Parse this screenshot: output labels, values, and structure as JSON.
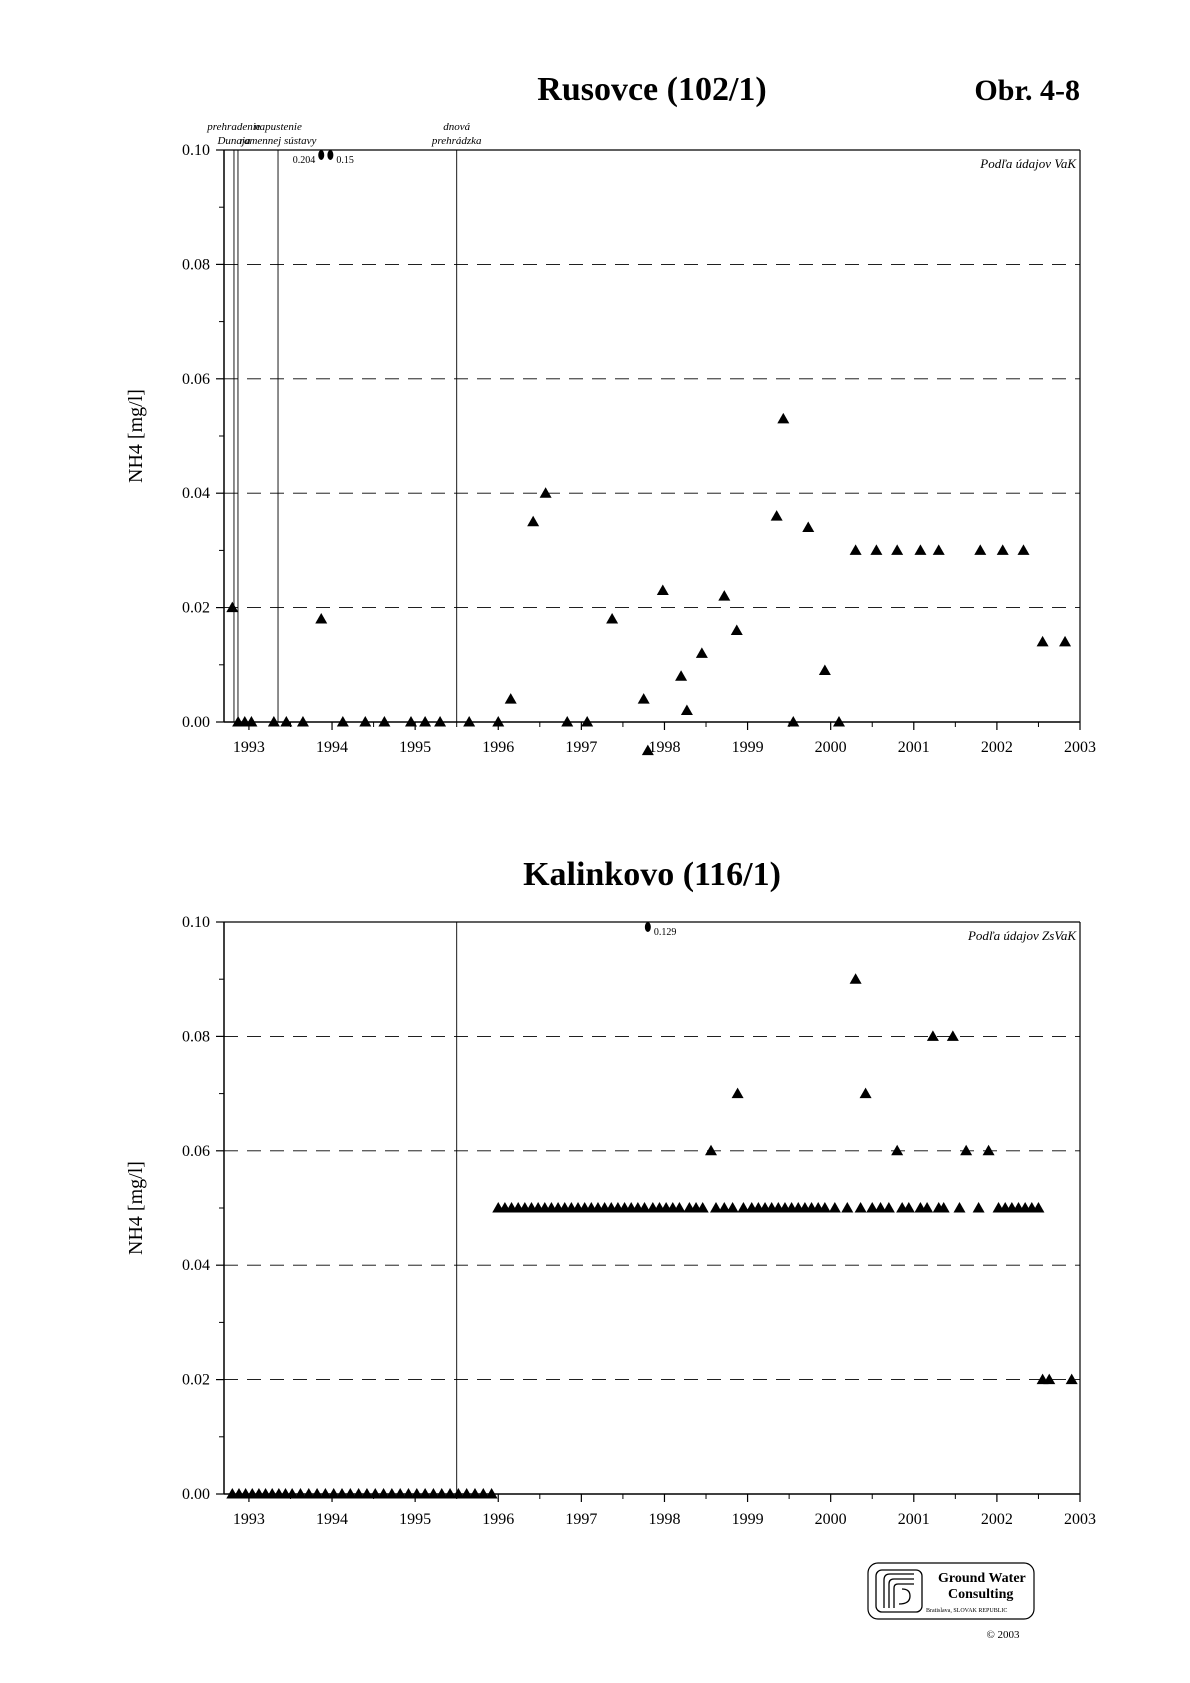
{
  "figure_label": "Obr. 4-8",
  "logo": {
    "line1": "Ground Water",
    "line2": "Consulting",
    "line3": "Bratislava, SLOVAK REPUBLIC",
    "copyright": "© 2003"
  },
  "chart_data": [
    {
      "type": "scatter",
      "title": "Rusovce (102/1)",
      "ylabel": "NH4 [mg/l]",
      "xlabel": "",
      "source_note": "Podľa údajov VaK",
      "xlim": [
        1992.7,
        2003.0
      ],
      "ylim": [
        0,
        0.1
      ],
      "xticks": [
        "1993",
        "1994",
        "1995",
        "1996",
        "1997",
        "1998",
        "1999",
        "2000",
        "2001",
        "2002",
        "2003"
      ],
      "yticks": [
        "0.00",
        "0.02",
        "0.04",
        "0.06",
        "0.08",
        "0.10"
      ],
      "grid": "dashed horizontal",
      "events": [
        {
          "x": 1992.82,
          "line1": "prehradenie",
          "line2": "Dunaja"
        },
        {
          "x": 1993.35,
          "line1": "napustenie",
          "line2": "ramennej sústavy"
        },
        {
          "x": 1995.5,
          "line1": "dnová",
          "line2": "prehrádzka"
        }
      ],
      "offscale": [
        {
          "x": 1993.87,
          "value": 0.204,
          "label": "0.204"
        },
        {
          "x": 1993.98,
          "value": 0.15,
          "label": "0.15"
        }
      ],
      "points": [
        [
          1992.8,
          0.02
        ],
        [
          1992.87,
          0.0
        ],
        [
          1992.95,
          0.0
        ],
        [
          1993.03,
          0.0
        ],
        [
          1993.3,
          0.0
        ],
        [
          1993.45,
          0.0
        ],
        [
          1993.65,
          0.0
        ],
        [
          1993.87,
          0.018
        ],
        [
          1994.13,
          0.0
        ],
        [
          1994.4,
          0.0
        ],
        [
          1994.63,
          0.0
        ],
        [
          1994.95,
          0.0
        ],
        [
          1995.12,
          0.0
        ],
        [
          1995.3,
          0.0
        ],
        [
          1995.65,
          0.0
        ],
        [
          1996.0,
          0.0
        ],
        [
          1996.15,
          0.004
        ],
        [
          1996.42,
          0.035
        ],
        [
          1996.57,
          0.04
        ],
        [
          1996.83,
          0.0
        ],
        [
          1997.07,
          0.0
        ],
        [
          1997.37,
          0.018
        ],
        [
          1997.75,
          0.004
        ],
        [
          1997.8,
          -0.005
        ],
        [
          1997.98,
          0.023
        ],
        [
          1998.2,
          0.008
        ],
        [
          1998.27,
          0.002
        ],
        [
          1998.45,
          0.012
        ],
        [
          1998.72,
          0.022
        ],
        [
          1998.87,
          0.016
        ],
        [
          1999.35,
          0.036
        ],
        [
          1999.43,
          0.053
        ],
        [
          1999.55,
          0.0
        ],
        [
          1999.73,
          0.034
        ],
        [
          1999.93,
          0.009
        ],
        [
          2000.1,
          0.0
        ],
        [
          2000.3,
          0.03
        ],
        [
          2000.55,
          0.03
        ],
        [
          2000.8,
          0.03
        ],
        [
          2001.08,
          0.03
        ],
        [
          2001.3,
          0.03
        ],
        [
          2001.8,
          0.03
        ],
        [
          2002.07,
          0.03
        ],
        [
          2002.32,
          0.03
        ],
        [
          2002.55,
          0.014
        ],
        [
          2002.82,
          0.014
        ]
      ]
    },
    {
      "type": "scatter",
      "title": "Kalinkovo (116/1)",
      "ylabel": "NH4 [mg/l]",
      "xlabel": "",
      "source_note": "Podľa údajov ZsVaK",
      "xlim": [
        1992.7,
        2003.0
      ],
      "ylim": [
        0,
        0.1
      ],
      "xticks": [
        "1993",
        "1994",
        "1995",
        "1996",
        "1997",
        "1998",
        "1999",
        "2000",
        "2001",
        "2002",
        "2003"
      ],
      "yticks": [
        "0.00",
        "0.02",
        "0.04",
        "0.06",
        "0.08",
        "0.10"
      ],
      "grid": "dashed horizontal",
      "events": [
        {
          "x": 1995.5,
          "line1": "",
          "line2": ""
        }
      ],
      "offscale": [
        {
          "x": 1997.8,
          "value": 0.129,
          "label": "0.129"
        }
      ],
      "points": [
        [
          1992.8,
          0.0
        ],
        [
          1992.88,
          0.0
        ],
        [
          1992.96,
          0.0
        ],
        [
          1993.04,
          0.0
        ],
        [
          1993.12,
          0.0
        ],
        [
          1993.2,
          0.0
        ],
        [
          1993.28,
          0.0
        ],
        [
          1993.36,
          0.0
        ],
        [
          1993.44,
          0.0
        ],
        [
          1993.52,
          0.0
        ],
        [
          1993.62,
          0.0
        ],
        [
          1993.72,
          0.0
        ],
        [
          1993.82,
          0.0
        ],
        [
          1993.92,
          0.0
        ],
        [
          1994.02,
          0.0
        ],
        [
          1994.12,
          0.0
        ],
        [
          1994.22,
          0.0
        ],
        [
          1994.32,
          0.0
        ],
        [
          1994.42,
          0.0
        ],
        [
          1994.52,
          0.0
        ],
        [
          1994.62,
          0.0
        ],
        [
          1994.72,
          0.0
        ],
        [
          1994.82,
          0.0
        ],
        [
          1994.92,
          0.0
        ],
        [
          1995.02,
          0.0
        ],
        [
          1995.12,
          0.0
        ],
        [
          1995.22,
          0.0
        ],
        [
          1995.32,
          0.0
        ],
        [
          1995.42,
          0.0
        ],
        [
          1995.52,
          0.0
        ],
        [
          1995.62,
          0.0
        ],
        [
          1995.72,
          0.0
        ],
        [
          1995.82,
          0.0
        ],
        [
          1995.92,
          0.0
        ],
        [
          1996.0,
          0.05
        ],
        [
          1996.08,
          0.05
        ],
        [
          1996.16,
          0.05
        ],
        [
          1996.24,
          0.05
        ],
        [
          1996.32,
          0.05
        ],
        [
          1996.4,
          0.05
        ],
        [
          1996.48,
          0.05
        ],
        [
          1996.56,
          0.05
        ],
        [
          1996.64,
          0.05
        ],
        [
          1996.72,
          0.05
        ],
        [
          1996.8,
          0.05
        ],
        [
          1996.88,
          0.05
        ],
        [
          1996.96,
          0.05
        ],
        [
          1997.04,
          0.05
        ],
        [
          1997.12,
          0.05
        ],
        [
          1997.2,
          0.05
        ],
        [
          1997.28,
          0.05
        ],
        [
          1997.36,
          0.05
        ],
        [
          1997.44,
          0.05
        ],
        [
          1997.52,
          0.05
        ],
        [
          1997.6,
          0.05
        ],
        [
          1997.68,
          0.05
        ],
        [
          1997.76,
          0.05
        ],
        [
          1997.86,
          0.05
        ],
        [
          1997.94,
          0.05
        ],
        [
          1998.02,
          0.05
        ],
        [
          1998.1,
          0.05
        ],
        [
          1998.18,
          0.05
        ],
        [
          1998.3,
          0.05
        ],
        [
          1998.38,
          0.05
        ],
        [
          1998.46,
          0.05
        ],
        [
          1998.56,
          0.06
        ],
        [
          1998.62,
          0.05
        ],
        [
          1998.72,
          0.05
        ],
        [
          1998.82,
          0.05
        ],
        [
          1998.88,
          0.07
        ],
        [
          1998.95,
          0.05
        ],
        [
          1999.05,
          0.05
        ],
        [
          1999.13,
          0.05
        ],
        [
          1999.21,
          0.05
        ],
        [
          1999.29,
          0.05
        ],
        [
          1999.37,
          0.05
        ],
        [
          1999.45,
          0.05
        ],
        [
          1999.53,
          0.05
        ],
        [
          1999.61,
          0.05
        ],
        [
          1999.69,
          0.05
        ],
        [
          1999.77,
          0.05
        ],
        [
          1999.85,
          0.05
        ],
        [
          1999.93,
          0.05
        ],
        [
          2000.05,
          0.05
        ],
        [
          2000.2,
          0.05
        ],
        [
          2000.3,
          0.09
        ],
        [
          2000.36,
          0.05
        ],
        [
          2000.42,
          0.07
        ],
        [
          2000.5,
          0.05
        ],
        [
          2000.6,
          0.05
        ],
        [
          2000.7,
          0.05
        ],
        [
          2000.8,
          0.06
        ],
        [
          2000.86,
          0.05
        ],
        [
          2000.94,
          0.05
        ],
        [
          2001.08,
          0.05
        ],
        [
          2001.16,
          0.05
        ],
        [
          2001.23,
          0.08
        ],
        [
          2001.3,
          0.05
        ],
        [
          2001.36,
          0.05
        ],
        [
          2001.47,
          0.08
        ],
        [
          2001.55,
          0.05
        ],
        [
          2001.63,
          0.06
        ],
        [
          2001.78,
          0.05
        ],
        [
          2001.9,
          0.06
        ],
        [
          2002.02,
          0.05
        ],
        [
          2002.1,
          0.05
        ],
        [
          2002.18,
          0.05
        ],
        [
          2002.26,
          0.05
        ],
        [
          2002.34,
          0.05
        ],
        [
          2002.42,
          0.05
        ],
        [
          2002.5,
          0.05
        ],
        [
          2002.55,
          0.02
        ],
        [
          2002.63,
          0.02
        ],
        [
          2002.9,
          0.02
        ]
      ]
    }
  ]
}
